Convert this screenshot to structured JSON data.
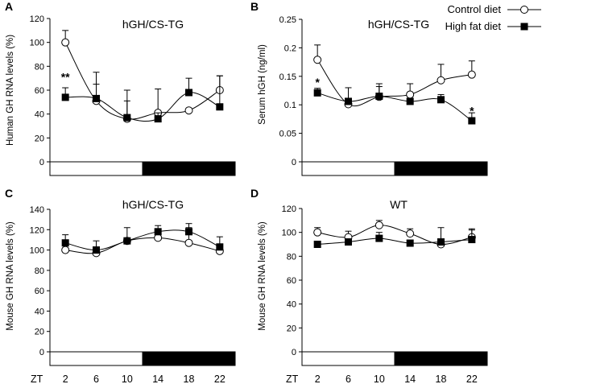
{
  "legend": {
    "control_label": "Control diet",
    "highfat_label": "High fat diet"
  },
  "x_axis": {
    "label": "ZT",
    "ticks": [
      "2",
      "6",
      "10",
      "14",
      "18",
      "22"
    ],
    "range": [
      0,
      24
    ],
    "light_phase": [
      0,
      12
    ],
    "dark_phase": [
      12,
      24
    ]
  },
  "colors": {
    "control_fill": "#ffffff",
    "highfat_fill": "#000000",
    "line": "#000000"
  },
  "chart_data": [
    {
      "type": "line",
      "panel": "A",
      "title": "hGH/CS-TG",
      "ylabel": "Human GH RNA levels (%)",
      "ylim": [
        0,
        120
      ],
      "yticks": [
        "0",
        "20",
        "40",
        "60",
        "80",
        "100",
        "120"
      ],
      "x": [
        2,
        6,
        10,
        14,
        18,
        22
      ],
      "series": [
        {
          "name": "Control diet",
          "values": [
            100,
            51,
            36,
            41,
            43,
            60
          ],
          "errors": [
            10,
            14,
            24,
            20,
            0,
            12
          ]
        },
        {
          "name": "High fat diet",
          "values": [
            54,
            53,
            37,
            36,
            58,
            46
          ],
          "errors": [
            8,
            22,
            14,
            5,
            12,
            26
          ]
        }
      ],
      "annotations": [
        {
          "text": "**",
          "x": 2,
          "y": 71
        }
      ]
    },
    {
      "type": "line",
      "panel": "B",
      "title": "hGH/CS-TG",
      "ylabel": "Serum hGH (ng/ml)",
      "ylim": [
        0,
        0.25
      ],
      "yticks": [
        "0",
        "0.05",
        "0.1",
        "0.15",
        "0.2",
        "0.25"
      ],
      "x": [
        2,
        6,
        10,
        14,
        18,
        22
      ],
      "series": [
        {
          "name": "Control diet",
          "values": [
            0.179,
            0.101,
            0.114,
            0.118,
            0.143,
            0.153
          ],
          "errors": [
            0.026,
            0.029,
            0.023,
            0.019,
            0.028,
            0.024
          ]
        },
        {
          "name": "High fat diet",
          "values": [
            0.121,
            0.106,
            0.115,
            0.106,
            0.109,
            0.072
          ],
          "errors": [
            0.008,
            0.004,
            0.017,
            0.003,
            0.009,
            0.014
          ]
        }
      ],
      "annotations": [
        {
          "text": "*",
          "x": 2,
          "y": 0.14
        },
        {
          "text": "*",
          "x": 22,
          "y": 0.09
        }
      ]
    },
    {
      "type": "line",
      "panel": "C",
      "title": "hGH/CS-TG",
      "ylabel": "Mouse GH RNA levels (%)",
      "ylim": [
        0,
        140
      ],
      "yticks": [
        "0",
        "20",
        "40",
        "60",
        "80",
        "100",
        "120",
        "140"
      ],
      "x": [
        2,
        6,
        10,
        14,
        18,
        22
      ],
      "series": [
        {
          "name": "Control diet",
          "values": [
            100,
            97,
            109,
            112,
            107,
            99
          ],
          "errors": [
            0,
            2,
            0,
            7,
            15,
            0
          ]
        },
        {
          "name": "High fat diet",
          "values": [
            107,
            100,
            109,
            118,
            118,
            103
          ],
          "errors": [
            8,
            9,
            13,
            6,
            8,
            10
          ]
        }
      ],
      "annotations": []
    },
    {
      "type": "line",
      "panel": "D",
      "title": "WT",
      "ylabel": "Mouse GH RNA levels (%)",
      "ylim": [
        0,
        120
      ],
      "yticks": [
        "0",
        "20",
        "40",
        "60",
        "80",
        "100",
        "120"
      ],
      "x": [
        2,
        6,
        10,
        14,
        18,
        22
      ],
      "series": [
        {
          "name": "Control diet",
          "values": [
            100,
            96,
            106,
            99,
            90,
            96
          ],
          "errors": [
            4,
            5,
            4,
            4,
            0,
            7
          ]
        },
        {
          "name": "High fat diet",
          "values": [
            90,
            92,
            95,
            91,
            92,
            94
          ],
          "errors": [
            0,
            0,
            5,
            0,
            12,
            8
          ]
        }
      ],
      "annotations": []
    }
  ]
}
